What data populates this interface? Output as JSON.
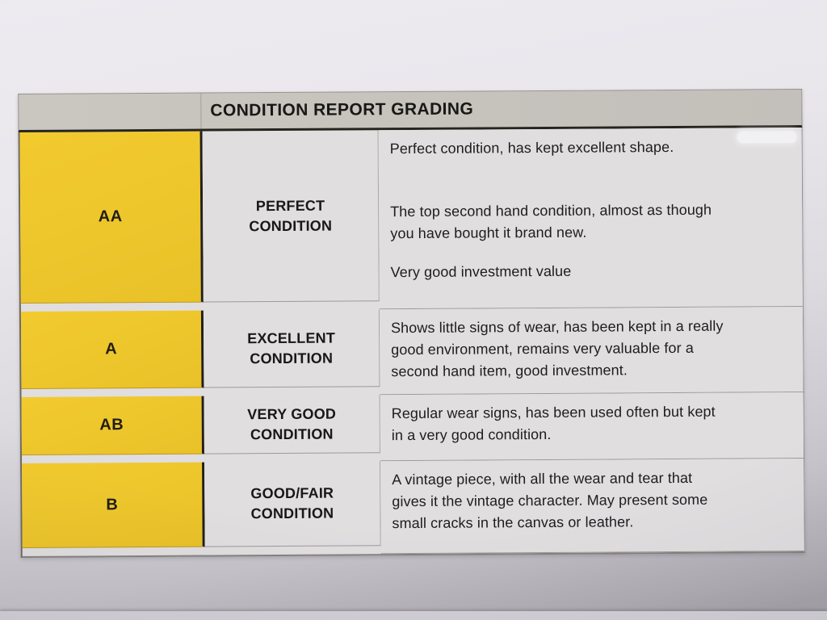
{
  "document": {
    "type": "printed condition grading table (photographed document)",
    "title": "CONDITION REPORT GRADING",
    "rows": [
      {
        "grade": "AA",
        "condition": "PERFECT\nCONDITION",
        "paragraphs": [
          "Perfect condition, has kept excellent shape.",
          "The top second hand condition, almost as though\nyou have bought it brand new.",
          "Very good investment value"
        ]
      },
      {
        "grade": "A",
        "condition": "EXCELLENT\nCONDITION",
        "paragraphs": [
          "Shows little signs of wear, has been kept in a really\ngood environment, remains very valuable for a\nsecond hand item, good investment."
        ]
      },
      {
        "grade": "AB",
        "condition": "VERY GOOD\nCONDITION",
        "paragraphs": [
          "Regular wear signs, has been used often but kept\nin a very good condition."
        ]
      },
      {
        "grade": "B",
        "condition": "GOOD/FAIR\nCONDITION",
        "paragraphs": [
          "A vintage piece, with all the wear and tear that\ngives it the vintage character. May present some\nsmall cracks in the canvas or leather."
        ]
      }
    ],
    "colors": {
      "grade_column_yellow": "#eec72d",
      "header_band_gray": "#c6c2bc",
      "cell_background_gray": "#e0dedf",
      "text": "#1d1c1f",
      "paper_top": "#edebf0",
      "paper_bottom": "#a7a4ac"
    }
  }
}
